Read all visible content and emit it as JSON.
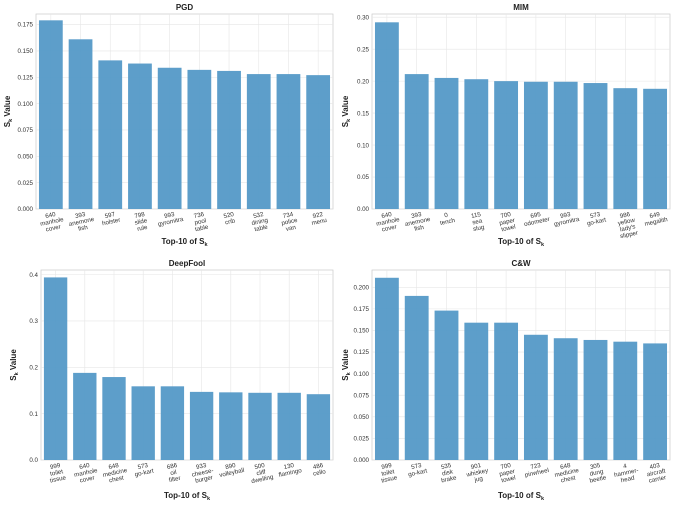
{
  "chart_data": [
    {
      "type": "bar",
      "title": "PGD",
      "xlabel": "Top-10 of S",
      "xlabel_sub": "k",
      "ylabel": "S",
      "ylabel_sub": "k",
      "ylabel_suffix": " Value",
      "ylim": [
        0,
        0.185
      ],
      "yticks": [
        "0.000",
        "0.025",
        "0.050",
        "0.075",
        "0.100",
        "0.125",
        "0.150",
        "0.175"
      ],
      "categories": [
        [
          "640",
          "manhole",
          "cover"
        ],
        [
          "393",
          "anemone",
          "fish"
        ],
        [
          "597",
          "holster"
        ],
        [
          "798",
          "slide",
          "rule"
        ],
        [
          "993",
          "gyromitra"
        ],
        [
          "736",
          "pool",
          "table"
        ],
        [
          "520",
          "crib"
        ],
        [
          "532",
          "dining",
          "table"
        ],
        [
          "734",
          "police",
          "van"
        ],
        [
          "922",
          "menu"
        ]
      ],
      "values": [
        0.179,
        0.161,
        0.141,
        0.138,
        0.134,
        0.132,
        0.131,
        0.128,
        0.128,
        0.127
      ],
      "color": "#5499c7",
      "grid": true
    },
    {
      "type": "bar",
      "title": "MIM",
      "xlabel": "Top-10 of S",
      "xlabel_sub": "k",
      "ylabel": "S",
      "ylabel_sub": "k",
      "ylabel_suffix": " Value",
      "ylim": [
        0,
        0.305
      ],
      "yticks": [
        "0.00",
        "0.05",
        "0.10",
        "0.15",
        "0.20",
        "0.25",
        "0.30"
      ],
      "categories": [
        [
          "640",
          "manhole",
          "cover"
        ],
        [
          "393",
          "anemone",
          "fish"
        ],
        [
          "0",
          "tench"
        ],
        [
          "115",
          "sea",
          "slug"
        ],
        [
          "700",
          "paper",
          "towel"
        ],
        [
          "695",
          "odometer"
        ],
        [
          "993",
          "gyromitra"
        ],
        [
          "573",
          "go-kart"
        ],
        [
          "986",
          "yellow",
          "lady's",
          "slipper"
        ],
        [
          "649",
          "megalith"
        ]
      ],
      "values": [
        0.292,
        0.211,
        0.205,
        0.203,
        0.2,
        0.199,
        0.199,
        0.197,
        0.189,
        0.188
      ],
      "color": "#5499c7",
      "grid": true
    },
    {
      "type": "bar",
      "title": "DeepFool",
      "xlabel": "Top-10 of S",
      "xlabel_sub": "k",
      "ylabel": "S",
      "ylabel_sub": "k",
      "ylabel_suffix": " Value",
      "ylim": [
        0,
        0.41
      ],
      "yticks": [
        "0.0",
        "0.1",
        "0.2",
        "0.3",
        "0.4"
      ],
      "categories": [
        [
          "999",
          "toilet",
          "tissue"
        ],
        [
          "640",
          "manhole",
          "cover"
        ],
        [
          "648",
          "medicine",
          "chest"
        ],
        [
          "573",
          "go-kart"
        ],
        [
          "686",
          "oil",
          "filter"
        ],
        [
          "933",
          "cheese-",
          "burger"
        ],
        [
          "890",
          "volleyball"
        ],
        [
          "500",
          "cliff",
          "dwelling"
        ],
        [
          "130",
          "flamingo"
        ],
        [
          "486",
          "cello"
        ]
      ],
      "values": [
        0.394,
        0.188,
        0.179,
        0.159,
        0.159,
        0.147,
        0.146,
        0.145,
        0.145,
        0.142
      ],
      "color": "#5499c7",
      "grid": true
    },
    {
      "type": "bar",
      "title": "C&W",
      "xlabel": "Top-10 of S",
      "xlabel_sub": "k",
      "ylabel": "S",
      "ylabel_sub": "k",
      "ylabel_suffix": " Value",
      "ylim": [
        0,
        0.22
      ],
      "yticks": [
        "0.000",
        "0.025",
        "0.050",
        "0.075",
        "0.100",
        "0.125",
        "0.150",
        "0.175",
        "0.200"
      ],
      "categories": [
        [
          "999",
          "toilet",
          "tissue"
        ],
        [
          "573",
          "go-kart"
        ],
        [
          "535",
          "disk",
          "brake"
        ],
        [
          "901",
          "whiskey",
          "jug"
        ],
        [
          "700",
          "paper",
          "towel"
        ],
        [
          "723",
          "pinwheel"
        ],
        [
          "648",
          "medicine",
          "chest"
        ],
        [
          "305",
          "dung",
          "beetle"
        ],
        [
          "4",
          "hammer-",
          "head"
        ],
        [
          "403",
          "aircraft",
          "carrier"
        ]
      ],
      "values": [
        0.211,
        0.19,
        0.173,
        0.159,
        0.159,
        0.145,
        0.141,
        0.139,
        0.137,
        0.135
      ],
      "color": "#5499c7",
      "grid": true
    }
  ]
}
